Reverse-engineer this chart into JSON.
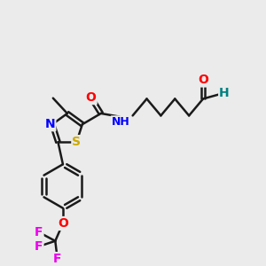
{
  "background_color": "#ebebeb",
  "bond_color": "#1a1a1a",
  "atom_colors": {
    "O": "#ff0000",
    "N": "#0000ff",
    "S": "#ccaa00",
    "F": "#ee00ee",
    "C": "#1a1a1a",
    "H": "#008080"
  },
  "figsize": [
    3.0,
    3.0
  ],
  "dpi": 100,
  "xlim": [
    0,
    12
  ],
  "ylim": [
    0,
    12
  ]
}
